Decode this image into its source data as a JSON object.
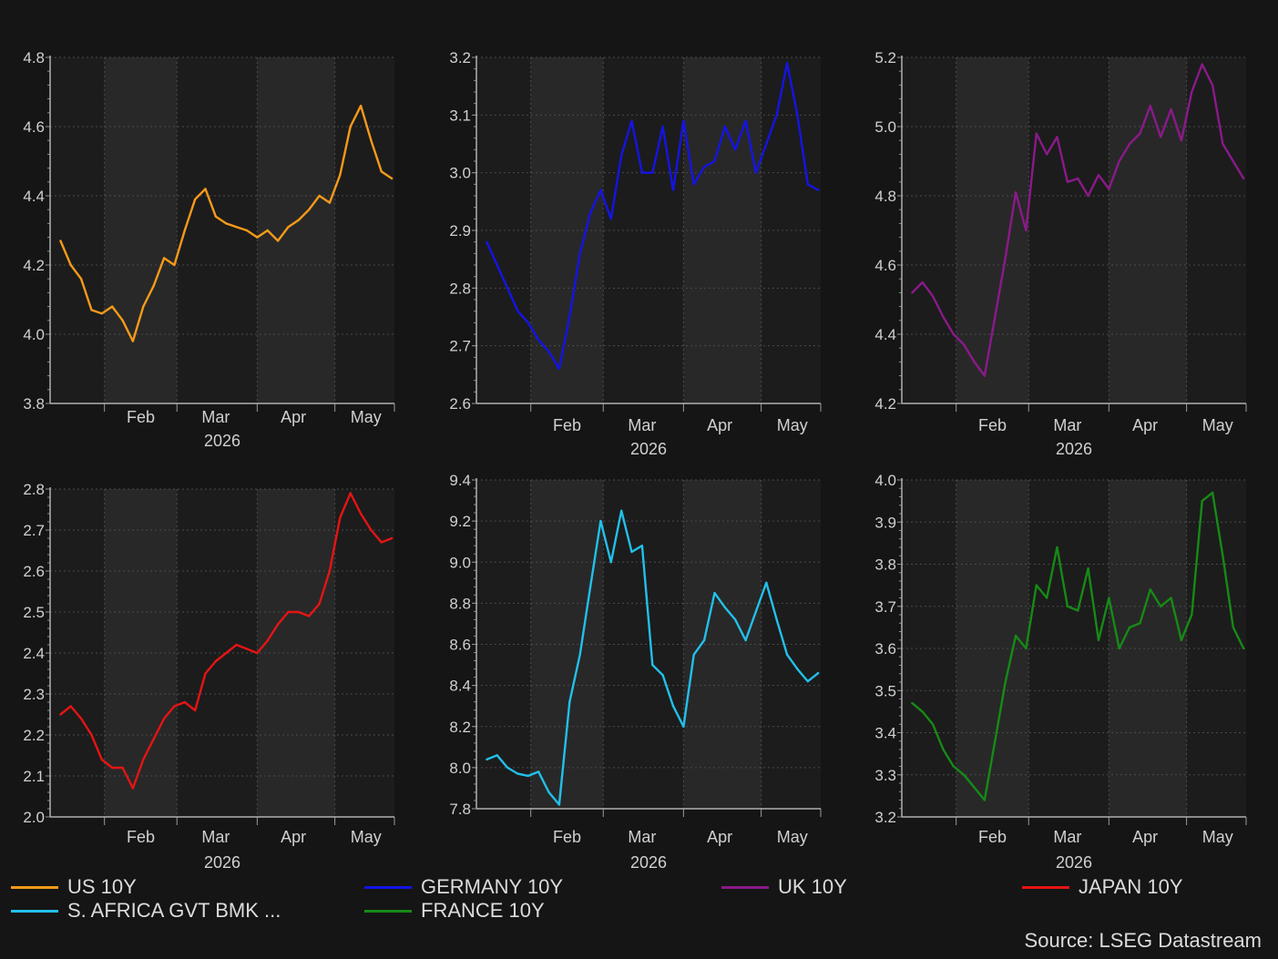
{
  "source": "Source: LSEG Datastream",
  "legend": [
    {
      "label": "US 10Y",
      "color": "#f59a1a"
    },
    {
      "label": "GERMANY 10Y",
      "color": "#1414e6"
    },
    {
      "label": "UK 10Y",
      "color": "#8a1a8a"
    },
    {
      "label": "JAPAN 10Y",
      "color": "#e61414"
    },
    {
      "label": "S. AFRICA GVT BMK ...",
      "color": "#22c0ea"
    },
    {
      "label": "FRANCE 10Y",
      "color": "#168a16"
    }
  ],
  "chart_data": [
    {
      "type": "line",
      "series_name": "US 10Y",
      "color": "#f59a1a",
      "xlabel": "2026",
      "x_ticks": [
        "Feb",
        "Mar",
        "Apr",
        "May"
      ],
      "y_ticks": [
        "3.8",
        "4.0",
        "4.2",
        "4.4",
        "4.6",
        "4.8"
      ],
      "ylim": [
        3.8,
        4.8
      ],
      "x": [
        "2026-01-15",
        "2026-01-19",
        "2026-01-23",
        "2026-01-27",
        "2026-01-31",
        "2026-02-04",
        "2026-02-08",
        "2026-02-12",
        "2026-02-16",
        "2026-02-20",
        "2026-02-24",
        "2026-02-28",
        "2026-03-04",
        "2026-03-08",
        "2026-03-12",
        "2026-03-16",
        "2026-03-20",
        "2026-03-24",
        "2026-03-28",
        "2026-04-01",
        "2026-04-05",
        "2026-04-09",
        "2026-04-13",
        "2026-04-17",
        "2026-04-21",
        "2026-04-25",
        "2026-04-29",
        "2026-05-03",
        "2026-05-07",
        "2026-05-11",
        "2026-05-15",
        "2026-05-19",
        "2026-05-23"
      ],
      "values": [
        4.27,
        4.2,
        4.16,
        4.07,
        4.06,
        4.08,
        4.04,
        3.98,
        4.08,
        4.14,
        4.22,
        4.2,
        4.3,
        4.39,
        4.42,
        4.34,
        4.32,
        4.31,
        4.3,
        4.28,
        4.3,
        4.27,
        4.31,
        4.33,
        4.36,
        4.4,
        4.38,
        4.46,
        4.6,
        4.66,
        4.56,
        4.47,
        4.45
      ]
    },
    {
      "type": "line",
      "series_name": "GERMANY 10Y",
      "color": "#1414e6",
      "xlabel": "2026",
      "x_ticks": [
        "Feb",
        "Mar",
        "Apr",
        "May"
      ],
      "y_ticks": [
        "2.6",
        "2.7",
        "2.8",
        "2.9",
        "3.0",
        "3.1",
        "3.2"
      ],
      "ylim": [
        2.6,
        3.2
      ],
      "x": [
        "2026-01-15",
        "2026-01-19",
        "2026-01-23",
        "2026-01-27",
        "2026-01-31",
        "2026-02-04",
        "2026-02-08",
        "2026-02-12",
        "2026-02-16",
        "2026-02-20",
        "2026-02-24",
        "2026-02-28",
        "2026-03-04",
        "2026-03-08",
        "2026-03-12",
        "2026-03-16",
        "2026-03-20",
        "2026-03-24",
        "2026-03-28",
        "2026-04-01",
        "2026-04-05",
        "2026-04-09",
        "2026-04-13",
        "2026-04-17",
        "2026-04-21",
        "2026-04-25",
        "2026-04-29",
        "2026-05-03",
        "2026-05-07",
        "2026-05-11",
        "2026-05-15",
        "2026-05-19",
        "2026-05-23"
      ],
      "values": [
        2.88,
        2.84,
        2.8,
        2.76,
        2.74,
        2.71,
        2.69,
        2.66,
        2.75,
        2.86,
        2.93,
        2.97,
        2.92,
        3.03,
        3.09,
        3.0,
        3.0,
        3.08,
        2.97,
        3.09,
        2.98,
        3.01,
        3.02,
        3.08,
        3.04,
        3.09,
        3.0,
        3.05,
        3.1,
        3.19,
        3.1,
        2.98,
        2.97
      ]
    },
    {
      "type": "line",
      "series_name": "UK 10Y",
      "color": "#8a1a8a",
      "xlabel": "2026",
      "x_ticks": [
        "Feb",
        "Mar",
        "Apr",
        "May"
      ],
      "y_ticks": [
        "4.2",
        "4.4",
        "4.6",
        "4.8",
        "5.0",
        "5.2"
      ],
      "ylim": [
        4.2,
        5.2
      ],
      "x": [
        "2026-01-15",
        "2026-01-19",
        "2026-01-23",
        "2026-01-27",
        "2026-01-31",
        "2026-02-04",
        "2026-02-08",
        "2026-02-12",
        "2026-02-16",
        "2026-02-20",
        "2026-02-24",
        "2026-02-28",
        "2026-03-04",
        "2026-03-08",
        "2026-03-12",
        "2026-03-16",
        "2026-03-20",
        "2026-03-24",
        "2026-03-28",
        "2026-04-01",
        "2026-04-05",
        "2026-04-09",
        "2026-04-13",
        "2026-04-17",
        "2026-04-21",
        "2026-04-25",
        "2026-04-29",
        "2026-05-03",
        "2026-05-07",
        "2026-05-11",
        "2026-05-15",
        "2026-05-19",
        "2026-05-23"
      ],
      "values": [
        4.52,
        4.55,
        4.51,
        4.45,
        4.4,
        4.37,
        4.32,
        4.28,
        4.45,
        4.62,
        4.81,
        4.7,
        4.98,
        4.92,
        4.97,
        4.84,
        4.85,
        4.8,
        4.86,
        4.82,
        4.9,
        4.95,
        4.98,
        5.06,
        4.97,
        5.05,
        4.96,
        5.1,
        5.18,
        5.12,
        4.95,
        4.9,
        4.85
      ]
    },
    {
      "type": "line",
      "series_name": "JAPAN 10Y",
      "color": "#e61414",
      "xlabel": "2026",
      "x_ticks": [
        "Feb",
        "Mar",
        "Apr",
        "May"
      ],
      "y_ticks": [
        "2.0",
        "2.1",
        "2.2",
        "2.3",
        "2.4",
        "2.5",
        "2.6",
        "2.7",
        "2.8"
      ],
      "ylim": [
        2.0,
        2.8
      ],
      "x": [
        "2026-01-15",
        "2026-01-19",
        "2026-01-23",
        "2026-01-27",
        "2026-01-31",
        "2026-02-04",
        "2026-02-08",
        "2026-02-12",
        "2026-02-16",
        "2026-02-20",
        "2026-02-24",
        "2026-02-28",
        "2026-03-04",
        "2026-03-08",
        "2026-03-12",
        "2026-03-16",
        "2026-03-20",
        "2026-03-24",
        "2026-03-28",
        "2026-04-01",
        "2026-04-05",
        "2026-04-09",
        "2026-04-13",
        "2026-04-17",
        "2026-04-21",
        "2026-04-25",
        "2026-04-29",
        "2026-05-03",
        "2026-05-07",
        "2026-05-11",
        "2026-05-15",
        "2026-05-19",
        "2026-05-23"
      ],
      "values": [
        2.25,
        2.27,
        2.24,
        2.2,
        2.14,
        2.12,
        2.12,
        2.07,
        2.14,
        2.19,
        2.24,
        2.27,
        2.28,
        2.26,
        2.35,
        2.38,
        2.4,
        2.42,
        2.41,
        2.4,
        2.43,
        2.47,
        2.5,
        2.5,
        2.49,
        2.52,
        2.6,
        2.73,
        2.79,
        2.74,
        2.7,
        2.67,
        2.68
      ]
    },
    {
      "type": "line",
      "series_name": "S. AFRICA GVT BMK ...",
      "color": "#22c0ea",
      "xlabel": "2026",
      "x_ticks": [
        "Feb",
        "Mar",
        "Apr",
        "May"
      ],
      "y_ticks": [
        "7.8",
        "8.0",
        "8.2",
        "8.4",
        "8.6",
        "8.8",
        "9.0",
        "9.2",
        "9.4"
      ],
      "ylim": [
        7.8,
        9.4
      ],
      "x": [
        "2026-01-15",
        "2026-01-19",
        "2026-01-23",
        "2026-01-27",
        "2026-01-31",
        "2026-02-04",
        "2026-02-08",
        "2026-02-12",
        "2026-02-16",
        "2026-02-20",
        "2026-02-24",
        "2026-02-28",
        "2026-03-04",
        "2026-03-08",
        "2026-03-12",
        "2026-03-16",
        "2026-03-20",
        "2026-03-24",
        "2026-03-28",
        "2026-04-01",
        "2026-04-05",
        "2026-04-09",
        "2026-04-13",
        "2026-04-17",
        "2026-04-21",
        "2026-04-25",
        "2026-04-29",
        "2026-05-03",
        "2026-05-07",
        "2026-05-11",
        "2026-05-15",
        "2026-05-19",
        "2026-05-23"
      ],
      "values": [
        8.04,
        8.06,
        8.0,
        7.97,
        7.96,
        7.98,
        7.88,
        7.82,
        8.32,
        8.55,
        8.88,
        9.2,
        9.0,
        9.25,
        9.05,
        9.08,
        8.5,
        8.45,
        8.3,
        8.2,
        8.55,
        8.62,
        8.85,
        8.78,
        8.72,
        8.62,
        8.76,
        8.9,
        8.72,
        8.55,
        8.48,
        8.42,
        8.46
      ]
    },
    {
      "type": "line",
      "series_name": "FRANCE 10Y",
      "color": "#168a16",
      "xlabel": "2026",
      "x_ticks": [
        "Feb",
        "Mar",
        "Apr",
        "May"
      ],
      "y_ticks": [
        "3.2",
        "3.3",
        "3.4",
        "3.5",
        "3.6",
        "3.7",
        "3.8",
        "3.9",
        "4.0"
      ],
      "ylim": [
        3.2,
        4.0
      ],
      "x": [
        "2026-01-15",
        "2026-01-19",
        "2026-01-23",
        "2026-01-27",
        "2026-01-31",
        "2026-02-04",
        "2026-02-08",
        "2026-02-12",
        "2026-02-16",
        "2026-02-20",
        "2026-02-24",
        "2026-02-28",
        "2026-03-04",
        "2026-03-08",
        "2026-03-12",
        "2026-03-16",
        "2026-03-20",
        "2026-03-24",
        "2026-03-28",
        "2026-04-01",
        "2026-04-05",
        "2026-04-09",
        "2026-04-13",
        "2026-04-17",
        "2026-04-21",
        "2026-04-25",
        "2026-04-29",
        "2026-05-03",
        "2026-05-07",
        "2026-05-11",
        "2026-05-15",
        "2026-05-19",
        "2026-05-23"
      ],
      "values": [
        3.47,
        3.45,
        3.42,
        3.36,
        3.32,
        3.3,
        3.27,
        3.24,
        3.38,
        3.52,
        3.63,
        3.6,
        3.75,
        3.72,
        3.84,
        3.7,
        3.69,
        3.79,
        3.62,
        3.72,
        3.6,
        3.65,
        3.66,
        3.74,
        3.7,
        3.72,
        3.62,
        3.68,
        3.95,
        3.97,
        3.82,
        3.65,
        3.6
      ]
    }
  ]
}
